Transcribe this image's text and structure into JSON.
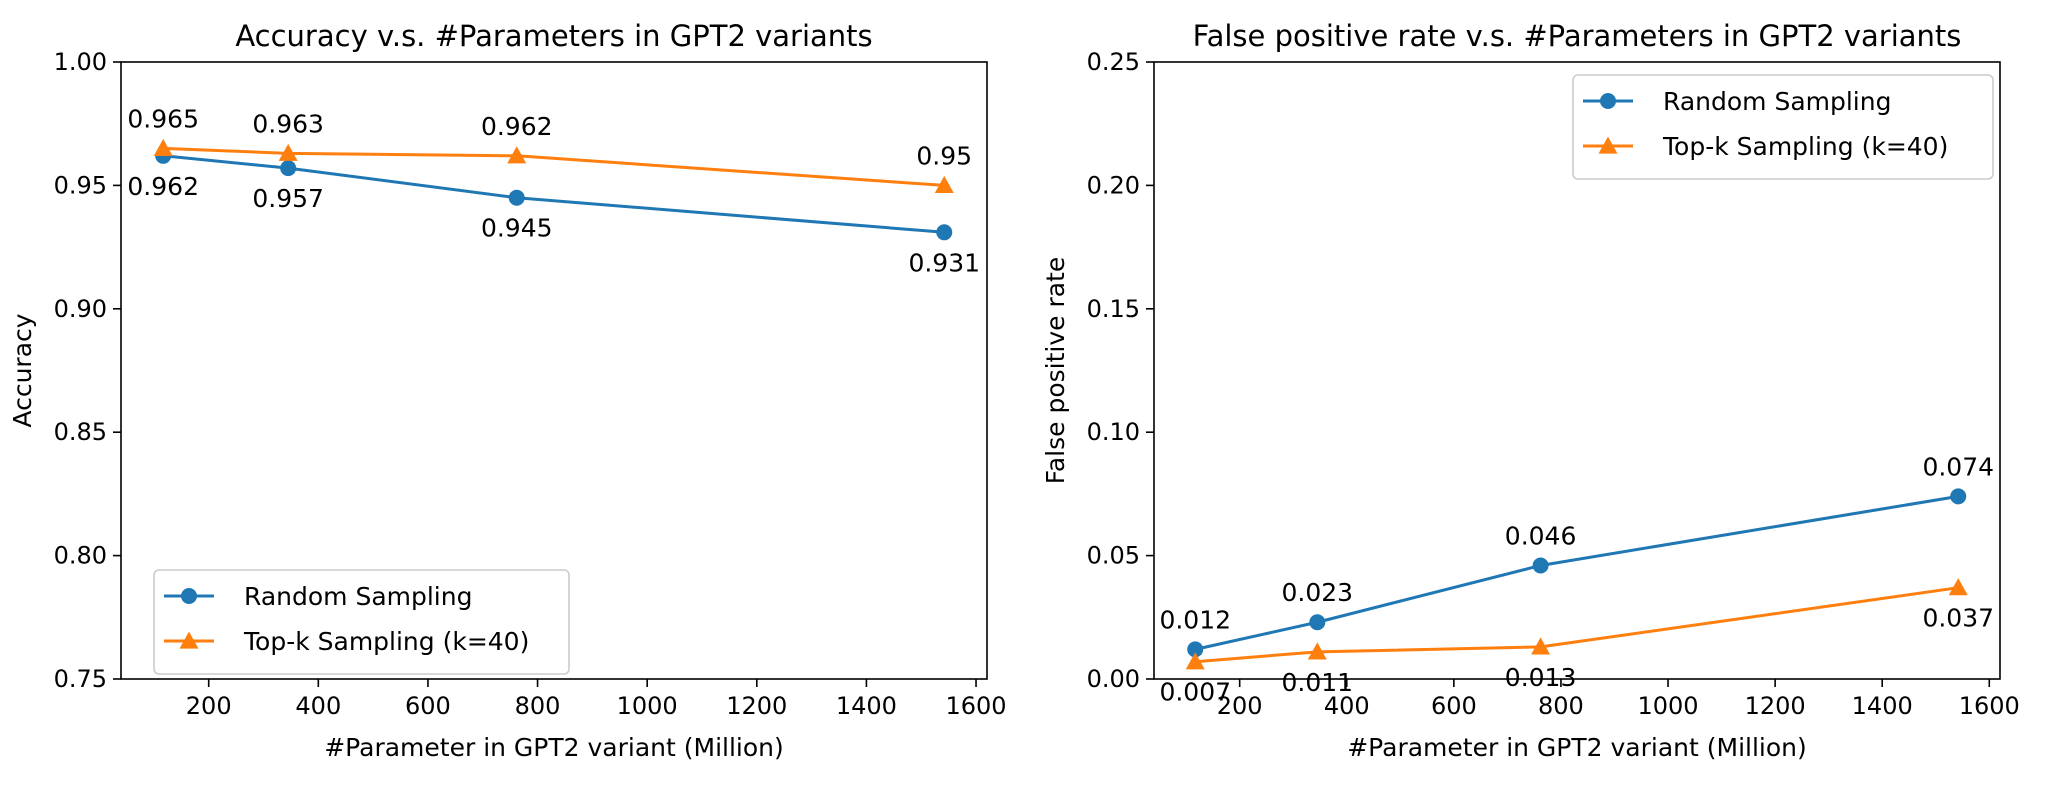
{
  "chart_data": [
    {
      "type": "line",
      "title": "Accuracy v.s. #Parameters in GPT2 variants",
      "xlabel": "#Parameter in GPT2 variant (Million)",
      "ylabel": "Accuracy",
      "x": [
        117,
        345,
        762,
        1542
      ],
      "xlim": [
        40,
        1620
      ],
      "ylim": [
        0.75,
        1.0
      ],
      "xticks": [
        200,
        400,
        600,
        800,
        1000,
        1200,
        1400,
        1600
      ],
      "yticks": [
        "0.75",
        "0.80",
        "0.85",
        "0.90",
        "0.95",
        "1.00"
      ],
      "legend_position": "lower-left",
      "grid": false,
      "series": [
        {
          "name": "Random Sampling",
          "values": [
            0.962,
            0.957,
            0.945,
            0.931
          ],
          "labels": [
            "0.962",
            "0.957",
            "0.945",
            "0.931"
          ],
          "marker": "circle",
          "color": "#1f77b4",
          "label_side": "below"
        },
        {
          "name": "Top-k Sampling (k=40)",
          "values": [
            0.965,
            0.963,
            0.962,
            0.95
          ],
          "labels": [
            "0.965",
            "0.963",
            "0.962",
            "0.95"
          ],
          "marker": "triangle",
          "color": "#ff7f0e",
          "label_side": "above"
        }
      ]
    },
    {
      "type": "line",
      "title": "False positive rate v.s. #Parameters in GPT2 variants",
      "xlabel": "#Parameter in GPT2 variant (Million)",
      "ylabel": "False positive rate",
      "x": [
        117,
        345,
        762,
        1542
      ],
      "xlim": [
        40,
        1620
      ],
      "ylim": [
        0.0,
        0.25
      ],
      "xticks": [
        200,
        400,
        600,
        800,
        1000,
        1200,
        1400,
        1600
      ],
      "yticks": [
        "0.00",
        "0.05",
        "0.10",
        "0.15",
        "0.20",
        "0.25"
      ],
      "legend_position": "upper-right",
      "grid": false,
      "series": [
        {
          "name": "Random Sampling",
          "values": [
            0.012,
            0.023,
            0.046,
            0.074
          ],
          "labels": [
            "0.012",
            "0.023",
            "0.046",
            "0.074"
          ],
          "marker": "circle",
          "color": "#1f77b4",
          "label_side": "above"
        },
        {
          "name": "Top-k Sampling (k=40)",
          "values": [
            0.007,
            0.011,
            0.013,
            0.037
          ],
          "labels": [
            "0.007",
            "0.011",
            "0.013",
            "0.037"
          ],
          "marker": "triangle",
          "color": "#ff7f0e",
          "label_side": "below"
        }
      ]
    }
  ]
}
